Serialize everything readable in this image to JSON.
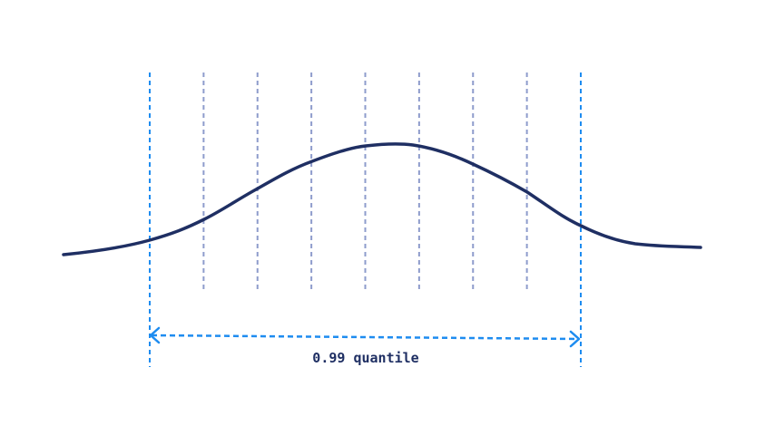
{
  "diagram": {
    "range_label": "0.99 quantile",
    "colors": {
      "curve": "#1f2f63",
      "quantile_bounds": "#1e8cf0",
      "inner_lines": "#8e9ccc",
      "label": "#1f2f63"
    },
    "inner_line_count": 7
  }
}
